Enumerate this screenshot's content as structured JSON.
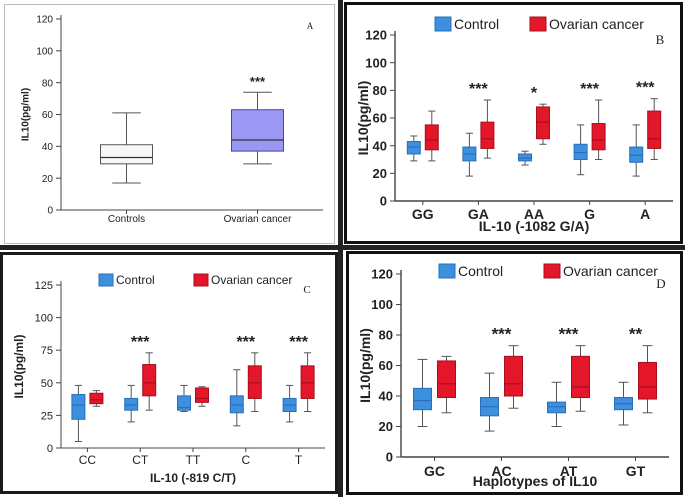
{
  "colors": {
    "control_face": "#3d8fe0",
    "control_edge": "#2a6fb8",
    "cancer_face": "#e3162a",
    "cancer_edge": "#a80f1d",
    "a_control_face": "#f7f7f7",
    "a_cancer_face": "#9a98f2",
    "a_cancer_edge": "#4444aa",
    "axis": "#444444",
    "text": "#222222"
  },
  "chart_data": [
    {
      "id": "panel-a",
      "type": "box",
      "letter": "A",
      "ylabel": "IL10(pg/ml)",
      "xlabel": "",
      "ylim": [
        0,
        120
      ],
      "yticks": [
        0,
        20,
        40,
        60,
        80,
        100,
        120
      ],
      "legend": [],
      "categories": [
        "Controls",
        "Ovarian cancer"
      ],
      "boxes": [
        {
          "category": 0,
          "group": "control",
          "whisker_low": 17,
          "q1": 29,
          "median": 33,
          "q3": 41,
          "whisker_high": 61
        },
        {
          "category": 1,
          "group": "cancer",
          "whisker_low": 29,
          "q1": 37,
          "median": 44,
          "q3": 63,
          "whisker_high": 74
        }
      ],
      "annotations": [
        {
          "category": 1,
          "text": "***"
        }
      ]
    },
    {
      "id": "panel-b",
      "type": "box",
      "letter": "B",
      "ylabel": "IL10(pg/ml)",
      "xlabel": "IL-10 (-1082 G/A)",
      "ylim": [
        0,
        120
      ],
      "yticks": [
        0,
        20,
        40,
        60,
        80,
        100,
        120
      ],
      "legend": [
        "Control",
        "Ovarian cancer"
      ],
      "categories": [
        "GG",
        "GA",
        "AA",
        "G",
        "A"
      ],
      "boxes": [
        {
          "category": 0,
          "group": "control",
          "whisker_low": 29,
          "q1": 34,
          "median": 39,
          "q3": 43,
          "whisker_high": 47
        },
        {
          "category": 0,
          "group": "cancer",
          "whisker_low": 29,
          "q1": 37,
          "median": 44,
          "q3": 55,
          "whisker_high": 65
        },
        {
          "category": 1,
          "group": "control",
          "whisker_low": 18,
          "q1": 29,
          "median": 34,
          "q3": 39,
          "whisker_high": 49
        },
        {
          "category": 1,
          "group": "cancer",
          "whisker_low": 31,
          "q1": 38,
          "median": 45,
          "q3": 57,
          "whisker_high": 73
        },
        {
          "category": 2,
          "group": "control",
          "whisker_low": 26,
          "q1": 29,
          "median": 31,
          "q3": 34,
          "whisker_high": 36
        },
        {
          "category": 2,
          "group": "cancer",
          "whisker_low": 41,
          "q1": 45,
          "median": 57,
          "q3": 68,
          "whisker_high": 70
        },
        {
          "category": 3,
          "group": "control",
          "whisker_low": 19,
          "q1": 30,
          "median": 35,
          "q3": 41,
          "whisker_high": 55
        },
        {
          "category": 3,
          "group": "cancer",
          "whisker_low": 30,
          "q1": 37,
          "median": 44,
          "q3": 56,
          "whisker_high": 73
        },
        {
          "category": 4,
          "group": "control",
          "whisker_low": 18,
          "q1": 28,
          "median": 33,
          "q3": 39,
          "whisker_high": 55
        },
        {
          "category": 4,
          "group": "cancer",
          "whisker_low": 30,
          "q1": 38,
          "median": 45,
          "q3": 65,
          "whisker_high": 74
        }
      ],
      "annotations": [
        {
          "category": 1,
          "text": "***"
        },
        {
          "category": 2,
          "text": "*"
        },
        {
          "category": 3,
          "text": "***"
        },
        {
          "category": 4,
          "text": "***"
        }
      ]
    },
    {
      "id": "panel-c",
      "type": "box",
      "letter": "C",
      "ylabel": "IL10(pg/ml)",
      "xlabel": "IL-10 (-819 C/T)",
      "ylim": [
        0,
        125
      ],
      "yticks": [
        0,
        25,
        50,
        75,
        100,
        125
      ],
      "legend": [
        "Control",
        "Ovarian cancer"
      ],
      "categories": [
        "CC",
        "CT",
        "TT",
        "C",
        "T"
      ],
      "boxes": [
        {
          "category": 0,
          "group": "control",
          "whisker_low": 5,
          "q1": 22,
          "median": 33,
          "q3": 41,
          "whisker_high": 48
        },
        {
          "category": 0,
          "group": "cancer",
          "whisker_low": 32,
          "q1": 34,
          "median": 37,
          "q3": 42,
          "whisker_high": 44
        },
        {
          "category": 1,
          "group": "control",
          "whisker_low": 20,
          "q1": 29,
          "median": 33,
          "q3": 38,
          "whisker_high": 48
        },
        {
          "category": 1,
          "group": "cancer",
          "whisker_low": 29,
          "q1": 40,
          "median": 50,
          "q3": 64,
          "whisker_high": 73
        },
        {
          "category": 2,
          "group": "control",
          "whisker_low": 28,
          "q1": 29,
          "median": 31,
          "q3": 40,
          "whisker_high": 48
        },
        {
          "category": 2,
          "group": "cancer",
          "whisker_low": 32,
          "q1": 35,
          "median": 38,
          "q3": 46,
          "whisker_high": 47
        },
        {
          "category": 3,
          "group": "control",
          "whisker_low": 17,
          "q1": 27,
          "median": 33,
          "q3": 40,
          "whisker_high": 60
        },
        {
          "category": 3,
          "group": "cancer",
          "whisker_low": 28,
          "q1": 38,
          "median": 50,
          "q3": 63,
          "whisker_high": 73
        },
        {
          "category": 4,
          "group": "control",
          "whisker_low": 20,
          "q1": 28,
          "median": 33,
          "q3": 38,
          "whisker_high": 48
        },
        {
          "category": 4,
          "group": "cancer",
          "whisker_low": 28,
          "q1": 38,
          "median": 50,
          "q3": 63,
          "whisker_high": 73
        }
      ],
      "annotations": [
        {
          "category": 1,
          "text": "***"
        },
        {
          "category": 3,
          "text": "***"
        },
        {
          "category": 4,
          "text": "***"
        }
      ]
    },
    {
      "id": "panel-d",
      "type": "box",
      "letter": "D",
      "ylabel": "IL10(pg/ml)",
      "xlabel": "Haplotypes of IL10",
      "ylim": [
        0,
        120
      ],
      "yticks": [
        0,
        20,
        40,
        60,
        80,
        100,
        120
      ],
      "legend": [
        "Control",
        "Ovarian cancer"
      ],
      "categories": [
        "GC",
        "AC",
        "AT",
        "GT"
      ],
      "boxes": [
        {
          "category": 0,
          "group": "control",
          "whisker_low": 20,
          "q1": 31,
          "median": 37,
          "q3": 45,
          "whisker_high": 64
        },
        {
          "category": 0,
          "group": "cancer",
          "whisker_low": 29,
          "q1": 39,
          "median": 48,
          "q3": 63,
          "whisker_high": 66
        },
        {
          "category": 1,
          "group": "control",
          "whisker_low": 17,
          "q1": 27,
          "median": 33,
          "q3": 39,
          "whisker_high": 55
        },
        {
          "category": 1,
          "group": "cancer",
          "whisker_low": 32,
          "q1": 40,
          "median": 48,
          "q3": 66,
          "whisker_high": 73
        },
        {
          "category": 2,
          "group": "control",
          "whisker_low": 20,
          "q1": 29,
          "median": 33,
          "q3": 36,
          "whisker_high": 49
        },
        {
          "category": 2,
          "group": "cancer",
          "whisker_low": 30,
          "q1": 39,
          "median": 46,
          "q3": 66,
          "whisker_high": 73
        },
        {
          "category": 3,
          "group": "control",
          "whisker_low": 21,
          "q1": 31,
          "median": 35,
          "q3": 39,
          "whisker_high": 49
        },
        {
          "category": 3,
          "group": "cancer",
          "whisker_low": 29,
          "q1": 38,
          "median": 46,
          "q3": 62,
          "whisker_high": 73
        }
      ],
      "annotations": [
        {
          "category": 1,
          "text": "***"
        },
        {
          "category": 2,
          "text": "***"
        },
        {
          "category": 3,
          "text": "**"
        }
      ]
    }
  ]
}
